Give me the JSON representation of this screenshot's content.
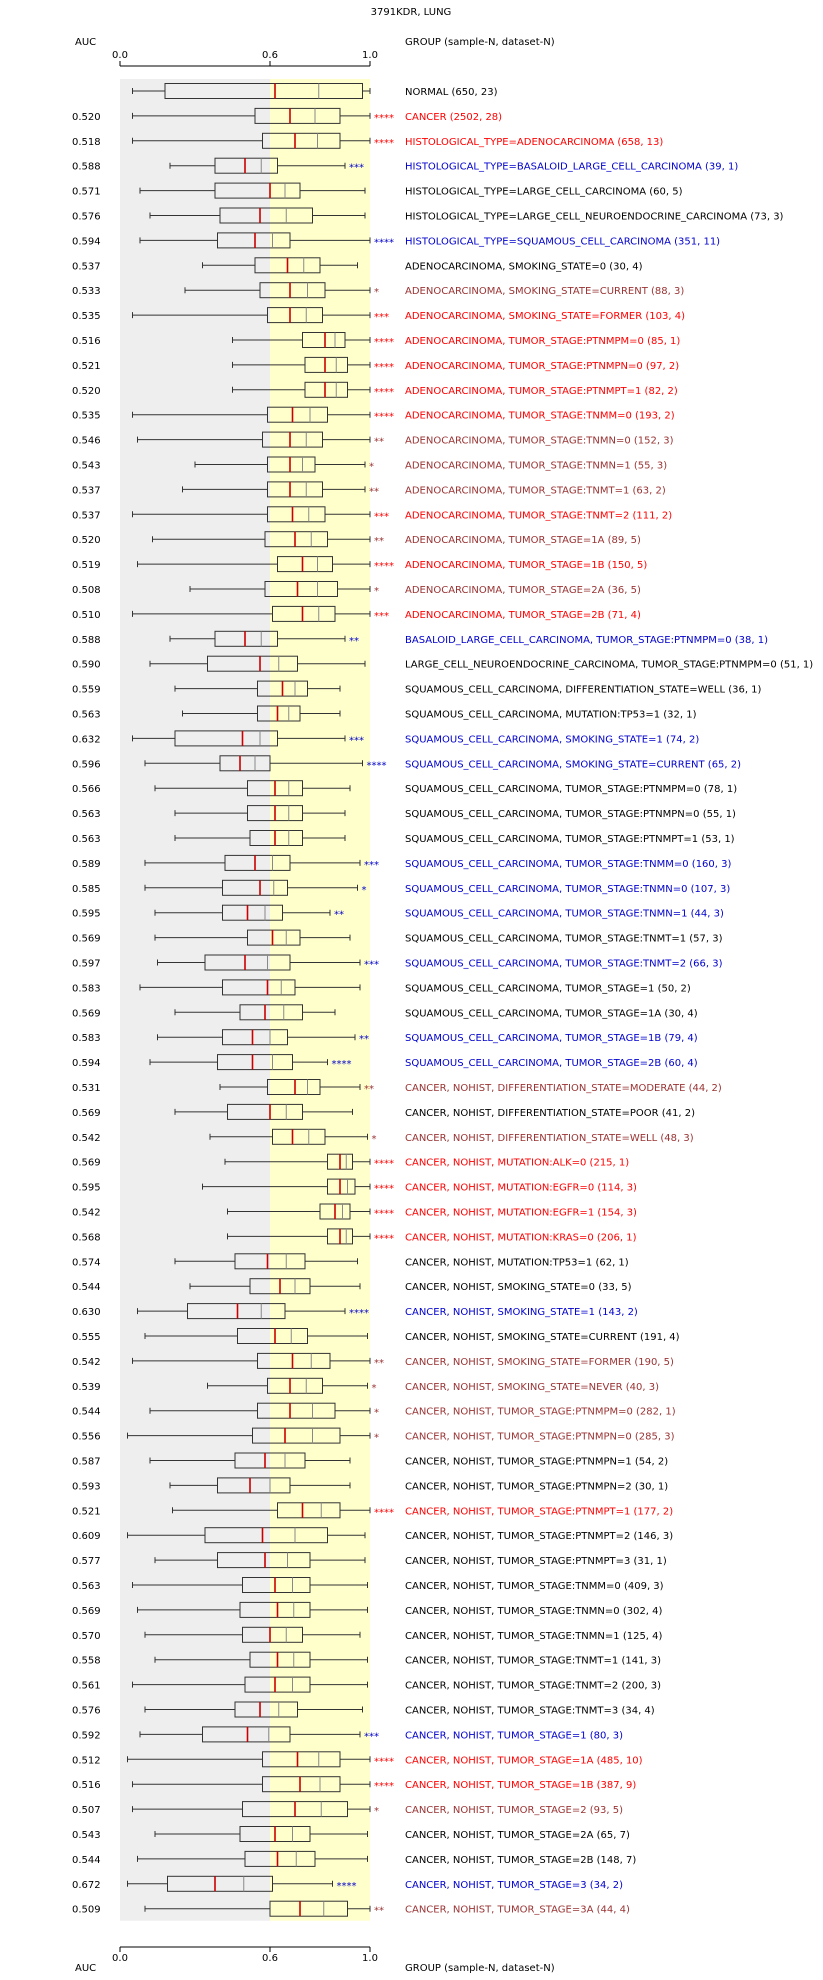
{
  "chart_data": {
    "type": "boxplot",
    "title": "3791KDR, LUNG",
    "auc_header": "AUC",
    "group_header": "GROUP (sample-N, dataset-N)",
    "x_ticks": [
      "0.0",
      "0.6",
      "1.0"
    ],
    "x_range": [
      0.0,
      1.0
    ],
    "colors": {
      "black": "#000000",
      "red": "#ff0000",
      "blue": "#0000cc",
      "brown": "#993333",
      "median": "#cc0000",
      "grey_band": "#eeeeee",
      "yellow_band": "#ffffcc"
    },
    "rows": [
      {
        "auc": "",
        "label": "NORMAL (650, 23)",
        "color": "black",
        "stars": "",
        "wl": 0.05,
        "q1": 0.18,
        "med": 0.62,
        "q3": 0.97,
        "wh": 1.0
      },
      {
        "auc": "0.520",
        "label": "CANCER (2502, 28)",
        "color": "red",
        "stars": "****",
        "wl": 0.05,
        "q1": 0.54,
        "med": 0.68,
        "q3": 0.88,
        "wh": 1.0
      },
      {
        "auc": "0.518",
        "label": "HISTOLOGICAL_TYPE=ADENOCARCINOMA (658, 13)",
        "color": "red",
        "stars": "****",
        "wl": 0.05,
        "q1": 0.57,
        "med": 0.7,
        "q3": 0.88,
        "wh": 1.0
      },
      {
        "auc": "0.588",
        "label": "HISTOLOGICAL_TYPE=BASALOID_LARGE_CELL_CARCINOMA (39, 1)",
        "color": "blue",
        "stars": "***",
        "wl": 0.2,
        "q1": 0.38,
        "med": 0.5,
        "q3": 0.63,
        "wh": 0.9
      },
      {
        "auc": "0.571",
        "label": "HISTOLOGICAL_TYPE=LARGE_CELL_CARCINOMA (60, 5)",
        "color": "black",
        "stars": "",
        "wl": 0.08,
        "q1": 0.38,
        "med": 0.6,
        "q3": 0.72,
        "wh": 0.98
      },
      {
        "auc": "0.576",
        "label": "HISTOLOGICAL_TYPE=LARGE_CELL_NEUROENDOCRINE_CARCINOMA (73, 3)",
        "color": "black",
        "stars": "",
        "wl": 0.12,
        "q1": 0.4,
        "med": 0.56,
        "q3": 0.77,
        "wh": 0.98
      },
      {
        "auc": "0.594",
        "label": "HISTOLOGICAL_TYPE=SQUAMOUS_CELL_CARCINOMA (351, 11)",
        "color": "blue",
        "stars": "****",
        "wl": 0.08,
        "q1": 0.39,
        "med": 0.54,
        "q3": 0.68,
        "wh": 1.0
      },
      {
        "auc": "0.537",
        "label": "ADENOCARCINOMA, SMOKING_STATE=0 (30, 4)",
        "color": "black",
        "stars": "",
        "wl": 0.33,
        "q1": 0.54,
        "med": 0.67,
        "q3": 0.8,
        "wh": 0.95
      },
      {
        "auc": "0.533",
        "label": "ADENOCARCINOMA, SMOKING_STATE=CURRENT (88, 3)",
        "color": "brown",
        "stars": "*",
        "wl": 0.26,
        "q1": 0.56,
        "med": 0.68,
        "q3": 0.82,
        "wh": 1.0
      },
      {
        "auc": "0.535",
        "label": "ADENOCARCINOMA, SMOKING_STATE=FORMER (103, 4)",
        "color": "red",
        "stars": "***",
        "wl": 0.05,
        "q1": 0.59,
        "med": 0.68,
        "q3": 0.81,
        "wh": 1.0
      },
      {
        "auc": "0.516",
        "label": "ADENOCARCINOMA, TUMOR_STAGE:PTNMPM=0 (85, 1)",
        "color": "red",
        "stars": "****",
        "wl": 0.45,
        "q1": 0.73,
        "med": 0.82,
        "q3": 0.9,
        "wh": 1.0
      },
      {
        "auc": "0.521",
        "label": "ADENOCARCINOMA, TUMOR_STAGE:PTNMPN=0 (97, 2)",
        "color": "red",
        "stars": "****",
        "wl": 0.45,
        "q1": 0.74,
        "med": 0.82,
        "q3": 0.91,
        "wh": 1.0
      },
      {
        "auc": "0.520",
        "label": "ADENOCARCINOMA, TUMOR_STAGE:PTNMPT=1 (82, 2)",
        "color": "red",
        "stars": "****",
        "wl": 0.45,
        "q1": 0.74,
        "med": 0.82,
        "q3": 0.91,
        "wh": 1.0
      },
      {
        "auc": "0.535",
        "label": "ADENOCARCINOMA, TUMOR_STAGE:TNMM=0 (193, 2)",
        "color": "red",
        "stars": "****",
        "wl": 0.05,
        "q1": 0.59,
        "med": 0.69,
        "q3": 0.83,
        "wh": 1.0
      },
      {
        "auc": "0.546",
        "label": "ADENOCARCINOMA, TUMOR_STAGE:TNMN=0 (152, 3)",
        "color": "brown",
        "stars": "**",
        "wl": 0.07,
        "q1": 0.57,
        "med": 0.68,
        "q3": 0.81,
        "wh": 1.0
      },
      {
        "auc": "0.543",
        "label": "ADENOCARCINOMA, TUMOR_STAGE:TNMN=1 (55, 3)",
        "color": "brown",
        "stars": "*",
        "wl": 0.3,
        "q1": 0.59,
        "med": 0.68,
        "q3": 0.78,
        "wh": 0.98
      },
      {
        "auc": "0.537",
        "label": "ADENOCARCINOMA, TUMOR_STAGE:TNMT=1 (63, 2)",
        "color": "brown",
        "stars": "**",
        "wl": 0.25,
        "q1": 0.59,
        "med": 0.68,
        "q3": 0.81,
        "wh": 0.98
      },
      {
        "auc": "0.537",
        "label": "ADENOCARCINOMA, TUMOR_STAGE:TNMT=2 (111, 2)",
        "color": "red",
        "stars": "***",
        "wl": 0.05,
        "q1": 0.59,
        "med": 0.69,
        "q3": 0.82,
        "wh": 1.0
      },
      {
        "auc": "0.520",
        "label": "ADENOCARCINOMA, TUMOR_STAGE=1A (89, 5)",
        "color": "brown",
        "stars": "**",
        "wl": 0.13,
        "q1": 0.58,
        "med": 0.7,
        "q3": 0.83,
        "wh": 1.0
      },
      {
        "auc": "0.519",
        "label": "ADENOCARCINOMA, TUMOR_STAGE=1B (150, 5)",
        "color": "red",
        "stars": "****",
        "wl": 0.07,
        "q1": 0.63,
        "med": 0.73,
        "q3": 0.85,
        "wh": 1.0
      },
      {
        "auc": "0.508",
        "label": "ADENOCARCINOMA, TUMOR_STAGE=2A (36, 5)",
        "color": "brown",
        "stars": "*",
        "wl": 0.28,
        "q1": 0.58,
        "med": 0.71,
        "q3": 0.87,
        "wh": 1.0
      },
      {
        "auc": "0.510",
        "label": "ADENOCARCINOMA, TUMOR_STAGE=2B (71, 4)",
        "color": "red",
        "stars": "***",
        "wl": 0.05,
        "q1": 0.61,
        "med": 0.73,
        "q3": 0.86,
        "wh": 1.0
      },
      {
        "auc": "0.588",
        "label": "BASALOID_LARGE_CELL_CARCINOMA, TUMOR_STAGE:PTNMPM=0 (38, 1)",
        "color": "blue",
        "stars": "**",
        "wl": 0.2,
        "q1": 0.38,
        "med": 0.5,
        "q3": 0.63,
        "wh": 0.9
      },
      {
        "auc": "0.590",
        "label": "LARGE_CELL_NEUROENDOCRINE_CARCINOMA, TUMOR_STAGE:PTNMPM=0 (51, 1)",
        "color": "black",
        "stars": "",
        "wl": 0.12,
        "q1": 0.35,
        "med": 0.56,
        "q3": 0.71,
        "wh": 0.98
      },
      {
        "auc": "0.559",
        "label": "SQUAMOUS_CELL_CARCINOMA, DIFFERENTIATION_STATE=WELL (36, 1)",
        "color": "black",
        "stars": "",
        "wl": 0.22,
        "q1": 0.55,
        "med": 0.65,
        "q3": 0.75,
        "wh": 0.88
      },
      {
        "auc": "0.563",
        "label": "SQUAMOUS_CELL_CARCINOMA, MUTATION:TP53=1 (32, 1)",
        "color": "black",
        "stars": "",
        "wl": 0.25,
        "q1": 0.55,
        "med": 0.63,
        "q3": 0.72,
        "wh": 0.88
      },
      {
        "auc": "0.632",
        "label": "SQUAMOUS_CELL_CARCINOMA, SMOKING_STATE=1 (74, 2)",
        "color": "blue",
        "stars": "***",
        "wl": 0.05,
        "q1": 0.22,
        "med": 0.49,
        "q3": 0.63,
        "wh": 0.9
      },
      {
        "auc": "0.596",
        "label": "SQUAMOUS_CELL_CARCINOMA, SMOKING_STATE=CURRENT (65, 2)",
        "color": "blue",
        "stars": "****",
        "wl": 0.1,
        "q1": 0.4,
        "med": 0.48,
        "q3": 0.6,
        "wh": 0.97
      },
      {
        "auc": "0.566",
        "label": "SQUAMOUS_CELL_CARCINOMA, TUMOR_STAGE:PTNMPM=0 (78, 1)",
        "color": "black",
        "stars": "",
        "wl": 0.14,
        "q1": 0.51,
        "med": 0.62,
        "q3": 0.73,
        "wh": 0.92
      },
      {
        "auc": "0.563",
        "label": "SQUAMOUS_CELL_CARCINOMA, TUMOR_STAGE:PTNMPN=0 (55, 1)",
        "color": "black",
        "stars": "",
        "wl": 0.22,
        "q1": 0.51,
        "med": 0.62,
        "q3": 0.73,
        "wh": 0.9
      },
      {
        "auc": "0.563",
        "label": "SQUAMOUS_CELL_CARCINOMA, TUMOR_STAGE:PTNMPT=1 (53, 1)",
        "color": "black",
        "stars": "",
        "wl": 0.22,
        "q1": 0.52,
        "med": 0.62,
        "q3": 0.73,
        "wh": 0.9
      },
      {
        "auc": "0.589",
        "label": "SQUAMOUS_CELL_CARCINOMA, TUMOR_STAGE:TNMM=0 (160, 3)",
        "color": "blue",
        "stars": "***",
        "wl": 0.1,
        "q1": 0.42,
        "med": 0.54,
        "q3": 0.68,
        "wh": 0.96
      },
      {
        "auc": "0.585",
        "label": "SQUAMOUS_CELL_CARCINOMA, TUMOR_STAGE:TNMN=0 (107, 3)",
        "color": "blue",
        "stars": "*",
        "wl": 0.1,
        "q1": 0.41,
        "med": 0.56,
        "q3": 0.67,
        "wh": 0.95
      },
      {
        "auc": "0.595",
        "label": "SQUAMOUS_CELL_CARCINOMA, TUMOR_STAGE:TNMN=1 (44, 3)",
        "color": "blue",
        "stars": "**",
        "wl": 0.14,
        "q1": 0.41,
        "med": 0.51,
        "q3": 0.65,
        "wh": 0.84
      },
      {
        "auc": "0.569",
        "label": "SQUAMOUS_CELL_CARCINOMA, TUMOR_STAGE:TNMT=1 (57, 3)",
        "color": "black",
        "stars": "",
        "wl": 0.14,
        "q1": 0.51,
        "med": 0.61,
        "q3": 0.72,
        "wh": 0.92
      },
      {
        "auc": "0.597",
        "label": "SQUAMOUS_CELL_CARCINOMA, TUMOR_STAGE:TNMT=2 (66, 3)",
        "color": "blue",
        "stars": "***",
        "wl": 0.15,
        "q1": 0.34,
        "med": 0.5,
        "q3": 0.68,
        "wh": 0.96
      },
      {
        "auc": "0.583",
        "label": "SQUAMOUS_CELL_CARCINOMA, TUMOR_STAGE=1 (50, 2)",
        "color": "black",
        "stars": "",
        "wl": 0.08,
        "q1": 0.41,
        "med": 0.59,
        "q3": 0.7,
        "wh": 0.96
      },
      {
        "auc": "0.569",
        "label": "SQUAMOUS_CELL_CARCINOMA, TUMOR_STAGE=1A (30, 4)",
        "color": "black",
        "stars": "",
        "wl": 0.22,
        "q1": 0.48,
        "med": 0.58,
        "q3": 0.73,
        "wh": 0.86
      },
      {
        "auc": "0.583",
        "label": "SQUAMOUS_CELL_CARCINOMA, TUMOR_STAGE=1B (79, 4)",
        "color": "blue",
        "stars": "**",
        "wl": 0.15,
        "q1": 0.41,
        "med": 0.53,
        "q3": 0.67,
        "wh": 0.94
      },
      {
        "auc": "0.594",
        "label": "SQUAMOUS_CELL_CARCINOMA, TUMOR_STAGE=2B (60, 4)",
        "color": "blue",
        "stars": "****",
        "wl": 0.12,
        "q1": 0.39,
        "med": 0.53,
        "q3": 0.69,
        "wh": 0.83
      },
      {
        "auc": "0.531",
        "label": "CANCER, NOHIST, DIFFERENTIATION_STATE=MODERATE (44, 2)",
        "color": "brown",
        "stars": "**",
        "wl": 0.4,
        "q1": 0.59,
        "med": 0.7,
        "q3": 0.8,
        "wh": 0.96
      },
      {
        "auc": "0.569",
        "label": "CANCER, NOHIST, DIFFERENTIATION_STATE=POOR (41, 2)",
        "color": "black",
        "stars": "",
        "wl": 0.22,
        "q1": 0.43,
        "med": 0.6,
        "q3": 0.73,
        "wh": 0.93
      },
      {
        "auc": "0.542",
        "label": "CANCER, NOHIST, DIFFERENTIATION_STATE=WELL (48, 3)",
        "color": "brown",
        "stars": "*",
        "wl": 0.36,
        "q1": 0.61,
        "med": 0.69,
        "q3": 0.82,
        "wh": 0.99
      },
      {
        "auc": "0.569",
        "label": "CANCER, NOHIST, MUTATION:ALK=0 (215, 1)",
        "color": "red",
        "stars": "****",
        "wl": 0.42,
        "q1": 0.83,
        "med": 0.88,
        "q3": 0.93,
        "wh": 1.0
      },
      {
        "auc": "0.595",
        "label": "CANCER, NOHIST, MUTATION:EGFR=0 (114, 3)",
        "color": "red",
        "stars": "****",
        "wl": 0.33,
        "q1": 0.83,
        "med": 0.88,
        "q3": 0.94,
        "wh": 1.0
      },
      {
        "auc": "0.542",
        "label": "CANCER, NOHIST, MUTATION:EGFR=1 (154, 3)",
        "color": "red",
        "stars": "****",
        "wl": 0.43,
        "q1": 0.8,
        "med": 0.86,
        "q3": 0.92,
        "wh": 1.0
      },
      {
        "auc": "0.568",
        "label": "CANCER, NOHIST, MUTATION:KRAS=0 (206, 1)",
        "color": "red",
        "stars": "****",
        "wl": 0.43,
        "q1": 0.83,
        "med": 0.88,
        "q3": 0.93,
        "wh": 1.0
      },
      {
        "auc": "0.574",
        "label": "CANCER, NOHIST, MUTATION:TP53=1 (62, 1)",
        "color": "black",
        "stars": "",
        "wl": 0.22,
        "q1": 0.46,
        "med": 0.59,
        "q3": 0.74,
        "wh": 0.95
      },
      {
        "auc": "0.544",
        "label": "CANCER, NOHIST, SMOKING_STATE=0 (33, 5)",
        "color": "black",
        "stars": "",
        "wl": 0.28,
        "q1": 0.52,
        "med": 0.64,
        "q3": 0.76,
        "wh": 0.96
      },
      {
        "auc": "0.630",
        "label": "CANCER, NOHIST, SMOKING_STATE=1 (143, 2)",
        "color": "blue",
        "stars": "****",
        "wl": 0.07,
        "q1": 0.27,
        "med": 0.47,
        "q3": 0.66,
        "wh": 0.9
      },
      {
        "auc": "0.555",
        "label": "CANCER, NOHIST, SMOKING_STATE=CURRENT (191, 4)",
        "color": "black",
        "stars": "",
        "wl": 0.1,
        "q1": 0.47,
        "med": 0.62,
        "q3": 0.75,
        "wh": 0.99
      },
      {
        "auc": "0.542",
        "label": "CANCER, NOHIST, SMOKING_STATE=FORMER (190, 5)",
        "color": "brown",
        "stars": "**",
        "wl": 0.05,
        "q1": 0.55,
        "med": 0.69,
        "q3": 0.84,
        "wh": 1.0
      },
      {
        "auc": "0.539",
        "label": "CANCER, NOHIST, SMOKING_STATE=NEVER (40, 3)",
        "color": "brown",
        "stars": "*",
        "wl": 0.35,
        "q1": 0.59,
        "med": 0.68,
        "q3": 0.81,
        "wh": 0.99
      },
      {
        "auc": "0.544",
        "label": "CANCER, NOHIST, TUMOR_STAGE:PTNMPM=0 (282, 1)",
        "color": "brown",
        "stars": "*",
        "wl": 0.12,
        "q1": 0.55,
        "med": 0.68,
        "q3": 0.86,
        "wh": 1.0
      },
      {
        "auc": "0.556",
        "label": "CANCER, NOHIST, TUMOR_STAGE:PTNMPN=0 (285, 3)",
        "color": "brown",
        "stars": "*",
        "wl": 0.03,
        "q1": 0.53,
        "med": 0.66,
        "q3": 0.88,
        "wh": 1.0
      },
      {
        "auc": "0.587",
        "label": "CANCER, NOHIST, TUMOR_STAGE:PTNMPN=1 (54, 2)",
        "color": "black",
        "stars": "",
        "wl": 0.12,
        "q1": 0.46,
        "med": 0.58,
        "q3": 0.74,
        "wh": 0.92
      },
      {
        "auc": "0.593",
        "label": "CANCER, NOHIST, TUMOR_STAGE:PTNMPN=2 (30, 1)",
        "color": "black",
        "stars": "",
        "wl": 0.2,
        "q1": 0.39,
        "med": 0.52,
        "q3": 0.68,
        "wh": 0.92
      },
      {
        "auc": "0.521",
        "label": "CANCER, NOHIST, TUMOR_STAGE:PTNMPT=1 (177, 2)",
        "color": "red",
        "stars": "****",
        "wl": 0.21,
        "q1": 0.63,
        "med": 0.73,
        "q3": 0.88,
        "wh": 1.0
      },
      {
        "auc": "0.609",
        "label": "CANCER, NOHIST, TUMOR_STAGE:PTNMPT=2 (146, 3)",
        "color": "black",
        "stars": "",
        "wl": 0.03,
        "q1": 0.34,
        "med": 0.57,
        "q3": 0.83,
        "wh": 0.98
      },
      {
        "auc": "0.577",
        "label": "CANCER, NOHIST, TUMOR_STAGE:PTNMPT=3 (31, 1)",
        "color": "black",
        "stars": "",
        "wl": 0.14,
        "q1": 0.39,
        "med": 0.58,
        "q3": 0.76,
        "wh": 0.98
      },
      {
        "auc": "0.563",
        "label": "CANCER, NOHIST, TUMOR_STAGE:TNMM=0 (409, 3)",
        "color": "black",
        "stars": "",
        "wl": 0.05,
        "q1": 0.49,
        "med": 0.62,
        "q3": 0.76,
        "wh": 0.99
      },
      {
        "auc": "0.569",
        "label": "CANCER, NOHIST, TUMOR_STAGE:TNMN=0 (302, 4)",
        "color": "black",
        "stars": "",
        "wl": 0.07,
        "q1": 0.48,
        "med": 0.63,
        "q3": 0.76,
        "wh": 0.99
      },
      {
        "auc": "0.570",
        "label": "CANCER, NOHIST, TUMOR_STAGE:TNMN=1 (125, 4)",
        "color": "black",
        "stars": "",
        "wl": 0.1,
        "q1": 0.49,
        "med": 0.6,
        "q3": 0.73,
        "wh": 0.96
      },
      {
        "auc": "0.558",
        "label": "CANCER, NOHIST, TUMOR_STAGE:TNMT=1 (141, 3)",
        "color": "black",
        "stars": "",
        "wl": 0.14,
        "q1": 0.52,
        "med": 0.63,
        "q3": 0.76,
        "wh": 0.99
      },
      {
        "auc": "0.561",
        "label": "CANCER, NOHIST, TUMOR_STAGE:TNMT=2 (200, 3)",
        "color": "black",
        "stars": "",
        "wl": 0.05,
        "q1": 0.5,
        "med": 0.62,
        "q3": 0.76,
        "wh": 0.99
      },
      {
        "auc": "0.576",
        "label": "CANCER, NOHIST, TUMOR_STAGE:TNMT=3 (34, 4)",
        "color": "black",
        "stars": "",
        "wl": 0.1,
        "q1": 0.46,
        "med": 0.56,
        "q3": 0.71,
        "wh": 0.97
      },
      {
        "auc": "0.592",
        "label": "CANCER, NOHIST, TUMOR_STAGE=1 (80, 3)",
        "color": "blue",
        "stars": "***",
        "wl": 0.08,
        "q1": 0.33,
        "med": 0.51,
        "q3": 0.68,
        "wh": 0.96
      },
      {
        "auc": "0.512",
        "label": "CANCER, NOHIST, TUMOR_STAGE=1A (485, 10)",
        "color": "red",
        "stars": "****",
        "wl": 0.03,
        "q1": 0.57,
        "med": 0.71,
        "q3": 0.88,
        "wh": 1.0
      },
      {
        "auc": "0.516",
        "label": "CANCER, NOHIST, TUMOR_STAGE=1B (387, 9)",
        "color": "red",
        "stars": "****",
        "wl": 0.05,
        "q1": 0.57,
        "med": 0.72,
        "q3": 0.88,
        "wh": 1.0
      },
      {
        "auc": "0.507",
        "label": "CANCER, NOHIST, TUMOR_STAGE=2 (93, 5)",
        "color": "brown",
        "stars": "*",
        "wl": 0.05,
        "q1": 0.49,
        "med": 0.7,
        "q3": 0.91,
        "wh": 1.0
      },
      {
        "auc": "0.543",
        "label": "CANCER, NOHIST, TUMOR_STAGE=2A (65, 7)",
        "color": "black",
        "stars": "",
        "wl": 0.14,
        "q1": 0.48,
        "med": 0.62,
        "q3": 0.76,
        "wh": 0.99
      },
      {
        "auc": "0.544",
        "label": "CANCER, NOHIST, TUMOR_STAGE=2B (148, 7)",
        "color": "black",
        "stars": "",
        "wl": 0.07,
        "q1": 0.5,
        "med": 0.63,
        "q3": 0.78,
        "wh": 0.99
      },
      {
        "auc": "0.672",
        "label": "CANCER, NOHIST, TUMOR_STAGE=3 (34, 2)",
        "color": "blue",
        "stars": "****",
        "wl": 0.03,
        "q1": 0.19,
        "med": 0.38,
        "q3": 0.61,
        "wh": 0.85
      },
      {
        "auc": "0.509",
        "label": "CANCER, NOHIST, TUMOR_STAGE=3A (44, 4)",
        "color": "brown",
        "stars": "**",
        "wl": 0.1,
        "q1": 0.6,
        "med": 0.72,
        "q3": 0.91,
        "wh": 1.0
      }
    ]
  }
}
